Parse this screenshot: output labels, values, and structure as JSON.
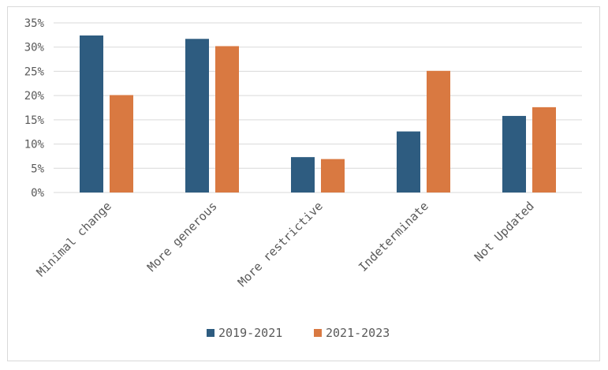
{
  "chart_data": {
    "type": "bar",
    "categories": [
      "Minimal change",
      "More generous",
      "More restrictive",
      "Indeterminate",
      "Not Updated"
    ],
    "series": [
      {
        "name": "2019-2021",
        "values": [
          32.4,
          31.7,
          7.3,
          12.6,
          15.8
        ],
        "color": "#2e5c80"
      },
      {
        "name": "2021-2023",
        "values": [
          20.1,
          30.2,
          6.9,
          25.1,
          17.6
        ],
        "color": "#d97941"
      }
    ],
    "title": "",
    "xlabel": "",
    "ylabel": "",
    "ylim": [
      0,
      35
    ],
    "yticks": [
      "0%",
      "5%",
      "10%",
      "15%",
      "20%",
      "25%",
      "30%",
      "35%"
    ],
    "grid": true,
    "legend_position": "bottom"
  }
}
